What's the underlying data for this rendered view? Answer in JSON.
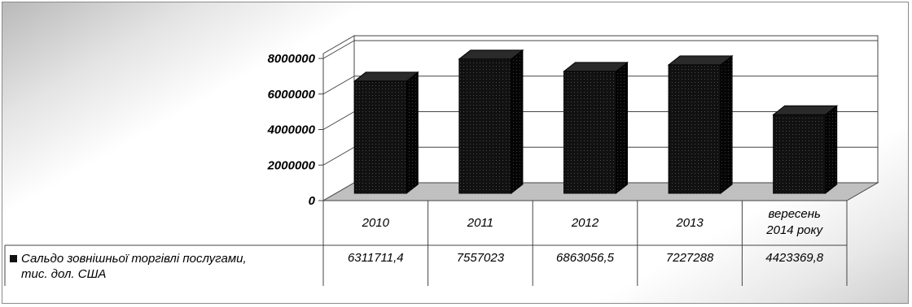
{
  "chart_data": {
    "type": "bar",
    "categories": [
      "2010",
      "2011",
      "2012",
      "2013",
      [
        "вересень",
        "2014 року"
      ]
    ],
    "series": [
      {
        "name": [
          "Сальдо зовнішньої торгівлі послугами,",
          "тис. дол. США"
        ],
        "values": [
          6311711.4,
          7557023,
          6863056.5,
          7227288,
          4423369.8
        ],
        "value_labels": [
          "6311711,4",
          "7557023",
          "6863056,5",
          "7227288",
          "4423369,8"
        ],
        "color": "#111111"
      }
    ],
    "y_ticks": [
      "0",
      "2000000",
      "4000000",
      "6000000",
      "8000000"
    ],
    "ylim": [
      0,
      8000000
    ],
    "grid": true,
    "style": "3d-columns",
    "legend": "data-table",
    "floor_color": "#c0c0c0"
  }
}
